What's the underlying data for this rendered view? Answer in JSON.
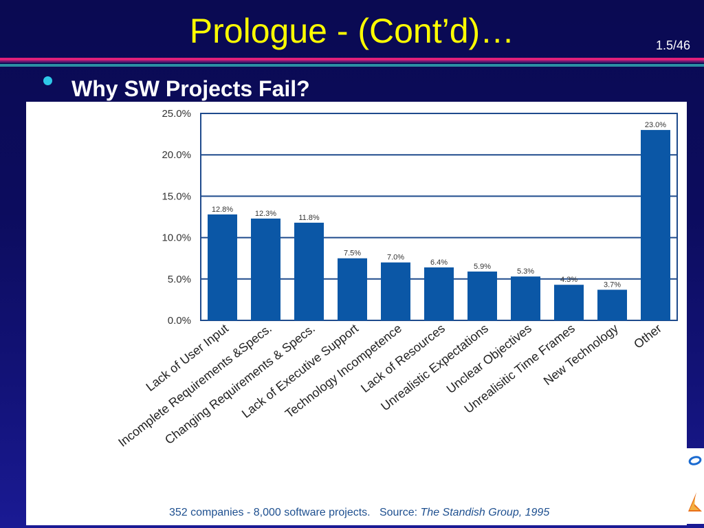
{
  "slide": {
    "title": "Prologue - (Cont’d)…",
    "page_number": "1.5/46",
    "bullet": "Why SW Projects Fail?"
  },
  "colors": {
    "bar": "#0b57a6",
    "title": "#ffff00",
    "frame": "#1e4a8c"
  },
  "chart_data": {
    "type": "bar",
    "categories": [
      "Lack of User Input",
      "Incomplete Requirements &Specs.",
      "Changing Requirements & Specs.",
      "Lack of Executive Support",
      "Technology Incompetence",
      "Lack of Resources",
      "Unrealistic Expectations",
      "Unclear Objectives",
      "Unrealisitic Time Frames",
      "New Technology",
      "Other"
    ],
    "values": [
      12.8,
      12.3,
      11.8,
      7.5,
      7.0,
      6.4,
      5.9,
      5.3,
      4.3,
      3.7,
      23.0
    ],
    "data_labels": [
      "12.8%",
      "12.3%",
      "11.8%",
      "7.5%",
      "7.0%",
      "6.4%",
      "5.9%",
      "5.3%",
      "4.3%",
      "3.7%",
      "23.0%"
    ],
    "y_ticks": [
      "0.0%",
      "5.0%",
      "10.0%",
      "15.0%",
      "20.0%",
      "25.0%"
    ],
    "ylim": [
      0,
      25
    ],
    "grid": true,
    "source_prefix": "352 companies - 8,000 software projects.   Source: ",
    "source_name": "The Standish Group, 1995"
  }
}
